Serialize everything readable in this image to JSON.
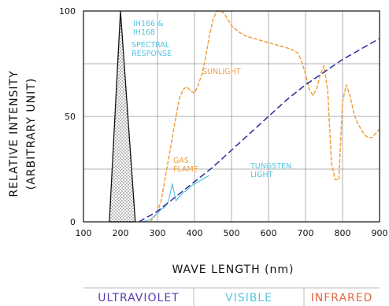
{
  "chart_data": {
    "type": "line",
    "xlabel": "WAVE LENGTH (nm)",
    "ylabel_lines": [
      "RELATIVE INTENSITY",
      "(ARBITRARY UNIT)"
    ],
    "xlim": [
      100,
      900
    ],
    "ylim": [
      0,
      100
    ],
    "x_ticks": [
      100,
      200,
      300,
      400,
      500,
      600,
      700,
      800,
      900
    ],
    "y_ticks": [
      0,
      50,
      100
    ],
    "grid": true,
    "series": [
      {
        "name": "IH166 & IH168 SPECTRAL RESPONSE",
        "color": "#111111",
        "style": "hatched-triangle",
        "x": [
          170,
          200,
          240
        ],
        "y": [
          0,
          100,
          0
        ]
      },
      {
        "name": "SUNLIGHT",
        "color": "#f0a040",
        "style": "dashed",
        "x": [
          280,
          290,
          300,
          310,
          320,
          330,
          340,
          350,
          360,
          370,
          380,
          390,
          400,
          410,
          420,
          430,
          440,
          450,
          460,
          470,
          480,
          490,
          500,
          520,
          540,
          560,
          580,
          600,
          620,
          640,
          660,
          680,
          690,
          700,
          710,
          720,
          730,
          740,
          750,
          760,
          770,
          780,
          790,
          800,
          810,
          820,
          830,
          840,
          850,
          860,
          870,
          880,
          890,
          900
        ],
        "y": [
          0,
          2,
          5,
          10,
          20,
          30,
          40,
          50,
          59,
          63,
          64,
          62,
          61,
          65,
          70,
          78,
          88,
          96,
          100,
          100,
          99,
          96,
          93,
          90,
          88,
          87,
          86,
          85,
          84,
          83,
          82,
          80,
          76,
          70,
          63,
          60,
          63,
          70,
          74,
          62,
          28,
          20,
          20,
          57,
          65,
          60,
          52,
          47,
          44,
          41,
          40,
          40,
          42,
          44
        ]
      },
      {
        "name": "GAS FLAME",
        "color": "#55c5e0",
        "style": "solid",
        "x": [
          260,
          280,
          300,
          310,
          320,
          330,
          340,
          350,
          360,
          370,
          380,
          390,
          400,
          410,
          420,
          430,
          440
        ],
        "y": [
          0,
          1,
          4,
          6,
          7,
          10,
          18,
          10,
          12,
          14,
          15,
          17,
          18,
          19,
          20,
          21,
          22
        ]
      },
      {
        "name": "TUNGSTEN LIGHT",
        "color": "#2a2a9a",
        "style": "dashed",
        "x": [
          250,
          300,
          350,
          400,
          450,
          500,
          550,
          600,
          650,
          700,
          750,
          800,
          850,
          900
        ],
        "y": [
          0,
          5,
          12,
          19,
          26,
          34,
          42,
          50,
          58,
          65,
          71,
          77,
          82,
          87
        ]
      }
    ],
    "annotations": [
      {
        "lines": [
          "IH166 &",
          "IH168"
        ],
        "color": "#55c5e0"
      },
      {
        "lines": [
          "SPECTRAL",
          "RESPONSE"
        ],
        "color": "#55c5e0"
      },
      {
        "lines": [
          "SUNLIGHT"
        ],
        "color": "#f0a040"
      },
      {
        "lines": [
          "GAS",
          "FLAME"
        ],
        "color": "#f0a040"
      },
      {
        "lines": [
          "TUNGSTEN",
          "LIGHT"
        ],
        "color": "#55c5e0"
      }
    ],
    "bands": [
      {
        "label": "ULTRAVIOLET",
        "color": "#5a3ab0"
      },
      {
        "label": "VISIBLE",
        "color": "#55c5e0"
      },
      {
        "label": "INFRARED",
        "color": "#e06a40"
      }
    ]
  }
}
